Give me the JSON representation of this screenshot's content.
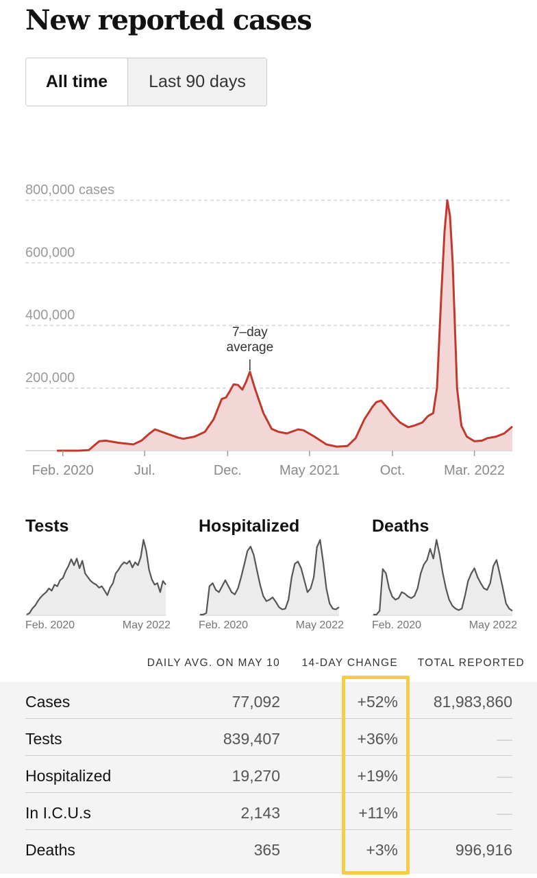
{
  "title": "New reported cases",
  "tabs": [
    {
      "label": "All time",
      "active": true
    },
    {
      "label": "Last 90 days",
      "active": false
    }
  ],
  "chart_data": [
    {
      "type": "area",
      "title": "",
      "ylabel": "800,000 cases",
      "y_ticks": [
        "200,000",
        "400,000",
        "600,000",
        "800,000 cases"
      ],
      "y_tick_values": [
        200000,
        400000,
        600000,
        800000
      ],
      "ylim": [
        0,
        800000
      ],
      "x_ticks": [
        "Feb. 2020",
        "Jul.",
        "Dec.",
        "May 2021",
        "Oct.",
        "Mar. 2022"
      ],
      "annotation": {
        "label": [
          "7–day",
          "average"
        ],
        "x": "2021-01-11"
      },
      "grid": true,
      "colors": {
        "line": "#c0392b",
        "fill": "#f3d6d6"
      },
      "series": [
        {
          "x": [
            "2020-01-21",
            "2020-03-01",
            "2020-03-20",
            "2020-04-08",
            "2020-04-20",
            "2020-05-15",
            "2020-06-10",
            "2020-06-25",
            "2020-07-10",
            "2020-07-20",
            "2020-08-10",
            "2020-08-31",
            "2020-09-10",
            "2020-10-01",
            "2020-10-20",
            "2020-11-05",
            "2020-11-20",
            "2020-11-28",
            "2020-12-05",
            "2020-12-12",
            "2020-12-20",
            "2020-12-28",
            "2021-01-04",
            "2021-01-11",
            "2021-01-20",
            "2021-02-05",
            "2021-02-20",
            "2021-03-05",
            "2021-03-20",
            "2021-04-10",
            "2021-04-20",
            "2021-05-10",
            "2021-06-01",
            "2021-06-20",
            "2021-07-10",
            "2021-07-25",
            "2021-08-10",
            "2021-08-25",
            "2021-09-01",
            "2021-09-10",
            "2021-09-20",
            "2021-10-01",
            "2021-10-15",
            "2021-10-30",
            "2021-11-10",
            "2021-11-25",
            "2021-12-05",
            "2021-12-15",
            "2021-12-22",
            "2021-12-30",
            "2022-01-05",
            "2022-01-10",
            "2022-01-15",
            "2022-01-20",
            "2022-01-28",
            "2022-02-05",
            "2022-02-15",
            "2022-03-01",
            "2022-03-15",
            "2022-03-25",
            "2022-04-10",
            "2022-04-25",
            "2022-05-10"
          ],
          "values": [
            0,
            0,
            2000,
            30000,
            32000,
            25000,
            20000,
            32000,
            55000,
            68000,
            55000,
            42000,
            38000,
            45000,
            60000,
            100000,
            165000,
            170000,
            190000,
            212000,
            210000,
            195000,
            220000,
            252000,
            200000,
            120000,
            70000,
            60000,
            55000,
            68000,
            65000,
            45000,
            20000,
            13000,
            15000,
            40000,
            100000,
            140000,
            155000,
            160000,
            140000,
            115000,
            90000,
            75000,
            80000,
            90000,
            110000,
            120000,
            200000,
            500000,
            700000,
            800000,
            750000,
            600000,
            200000,
            80000,
            45000,
            30000,
            32000,
            40000,
            45000,
            55000,
            77000
          ]
        }
      ]
    },
    {
      "type": "area",
      "title": "Tests",
      "x_ticks": [
        "Feb. 2020",
        "May 2022"
      ],
      "values": [
        0,
        0.02,
        0.08,
        0.12,
        0.18,
        0.23,
        0.27,
        0.3,
        0.35,
        0.32,
        0.4,
        0.38,
        0.46,
        0.49,
        0.58,
        0.65,
        0.74,
        0.66,
        0.75,
        0.62,
        0.72,
        0.55,
        0.5,
        0.45,
        0.42,
        0.4,
        0.36,
        0.38,
        0.32,
        0.26,
        0.36,
        0.42,
        0.55,
        0.6,
        0.66,
        0.7,
        0.68,
        0.72,
        0.63,
        0.7,
        0.66,
        0.77,
        1.0,
        0.85,
        0.6,
        0.47,
        0.4,
        0.42,
        0.3,
        0.45,
        0.4
      ]
    },
    {
      "type": "area",
      "title": "Hospitalized",
      "x_ticks": [
        "Feb. 2020",
        "May 2022"
      ],
      "values": [
        0,
        0,
        0.02,
        0.38,
        0.42,
        0.33,
        0.3,
        0.38,
        0.46,
        0.38,
        0.3,
        0.27,
        0.35,
        0.5,
        0.67,
        0.85,
        0.91,
        0.8,
        0.6,
        0.4,
        0.25,
        0.18,
        0.2,
        0.23,
        0.17,
        0.1,
        0.07,
        0.08,
        0.2,
        0.5,
        0.68,
        0.71,
        0.62,
        0.46,
        0.3,
        0.35,
        0.5,
        0.9,
        1.0,
        0.7,
        0.35,
        0.15,
        0.08,
        0.07,
        0.1
      ]
    },
    {
      "type": "area",
      "title": "Deaths",
      "x_ticks": [
        "Feb. 2020",
        "May 2022"
      ],
      "values": [
        0,
        0,
        0.05,
        0.61,
        0.55,
        0.35,
        0.24,
        0.2,
        0.22,
        0.3,
        0.28,
        0.24,
        0.22,
        0.25,
        0.35,
        0.55,
        0.67,
        0.73,
        0.88,
        0.75,
        1.0,
        0.8,
        0.55,
        0.35,
        0.2,
        0.12,
        0.08,
        0.06,
        0.08,
        0.25,
        0.45,
        0.55,
        0.62,
        0.5,
        0.42,
        0.35,
        0.33,
        0.42,
        0.65,
        0.73,
        0.55,
        0.35,
        0.15,
        0.08,
        0.05
      ]
    }
  ],
  "mini_charts": [
    {
      "title": "Tests",
      "start": "Feb. 2020",
      "end": "May 2022"
    },
    {
      "title": "Hospitalized",
      "start": "Feb. 2020",
      "end": "May 2022"
    },
    {
      "title": "Deaths",
      "start": "Feb. 2020",
      "end": "May 2022"
    }
  ],
  "table": {
    "headers": {
      "avg": "DAILY AVG. ON MAY 10",
      "change": "14-DAY CHANGE",
      "total": "TOTAL REPORTED"
    },
    "rows": [
      {
        "name": "Cases",
        "avg": "77,092",
        "change": "+52%",
        "total": "81,983,860"
      },
      {
        "name": "Tests",
        "avg": "839,407",
        "change": "+36%",
        "total": "—"
      },
      {
        "name": "Hospitalized",
        "avg": "19,270",
        "change": "+19%",
        "total": "—"
      },
      {
        "name": "In I.C.U.s",
        "avg": "2,143",
        "change": "+11%",
        "total": "—"
      },
      {
        "name": "Deaths",
        "avg": "365",
        "change": "+3%",
        "total": "996,916"
      }
    ],
    "highlight_color": "#f7cc46"
  }
}
